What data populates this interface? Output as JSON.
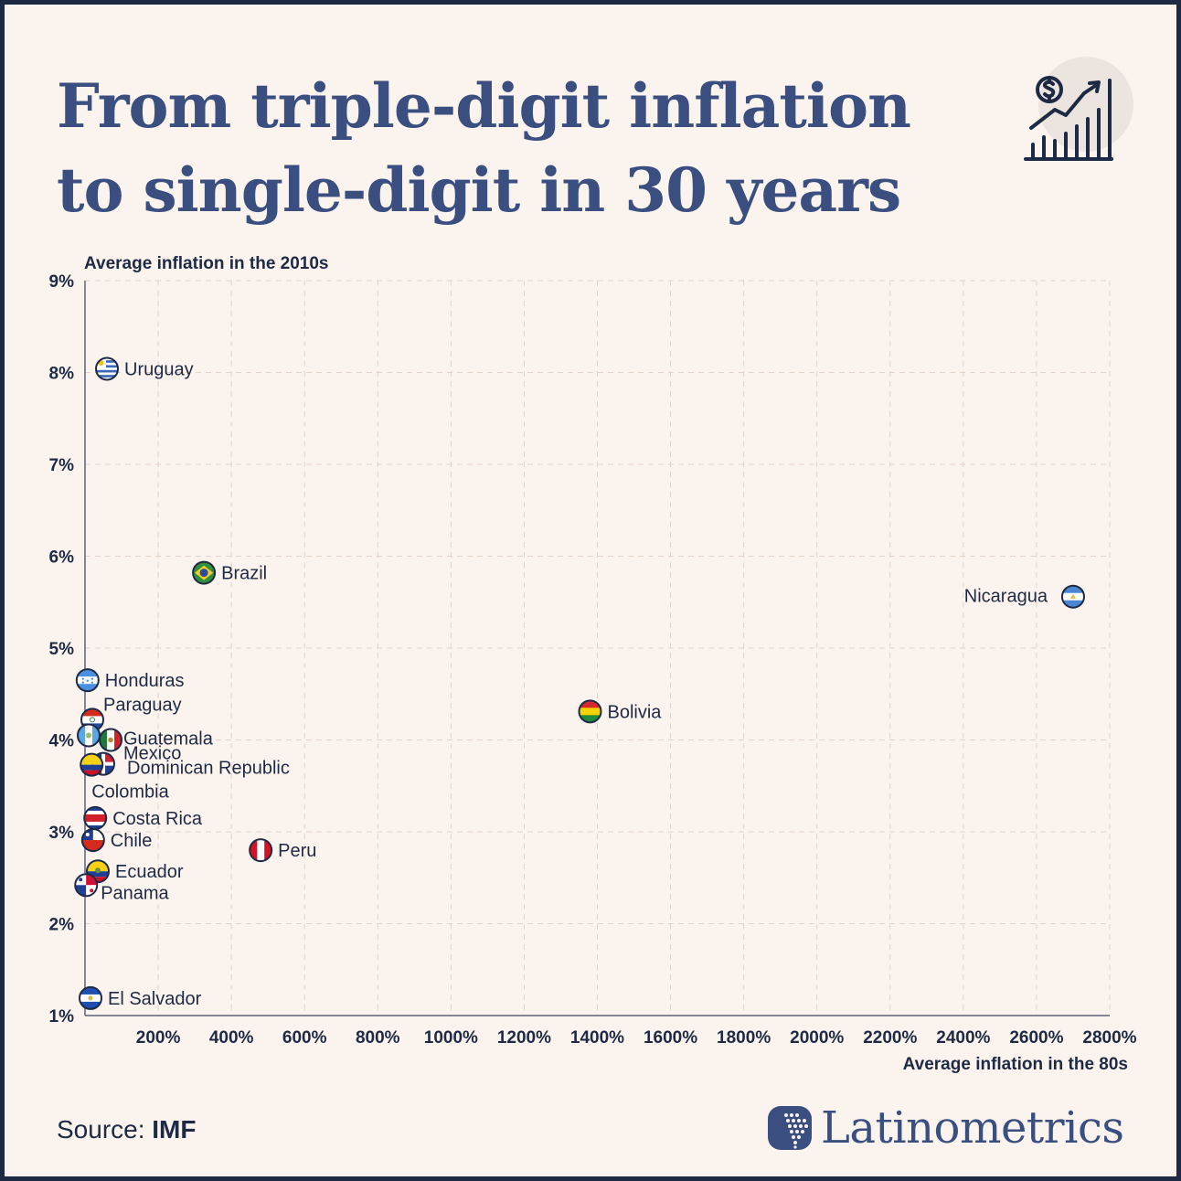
{
  "header": {
    "title_line1": "From triple-digit inflation",
    "title_line2": "to single-digit in 30 years"
  },
  "icons": {
    "header_icon": "rising-chart-dollar-icon",
    "brand_icon": "latin-america-map-icon"
  },
  "footer": {
    "source_label": "Source:",
    "source_value": "IMF",
    "brand": "Latinometrics"
  },
  "colors": {
    "background": "#fbf3ee",
    "border": "#1e2a44",
    "title": "#3a4f80",
    "text": "#1e2a44",
    "grid": "#e3d3c8"
  },
  "chart_data": {
    "type": "scatter",
    "ylabel": "Average inflation in the 2010s",
    "xlabel": "Average inflation in the 80s",
    "xlim": [
      0,
      2800
    ],
    "ylim": [
      1,
      9
    ],
    "x_ticks": [
      200,
      400,
      600,
      800,
      1000,
      1200,
      1400,
      1600,
      1800,
      2000,
      2200,
      2400,
      2600,
      2800
    ],
    "x_tick_labels": [
      "200%",
      "400%",
      "600%",
      "800%",
      "1000%",
      "1200%",
      "1400%",
      "1600%",
      "1800%",
      "2000%",
      "2200%",
      "2400%",
      "2600%",
      "2800%"
    ],
    "y_ticks": [
      1,
      2,
      3,
      4,
      5,
      6,
      7,
      8,
      9
    ],
    "y_tick_labels": [
      "1%",
      "2%",
      "3%",
      "4%",
      "5%",
      "6%",
      "7%",
      "8%",
      "9%"
    ],
    "grid": true,
    "points": [
      {
        "name": "Uruguay",
        "x": 60,
        "y": 8.04,
        "flag": "uruguay"
      },
      {
        "name": "Brazil",
        "x": 325,
        "y": 5.82,
        "flag": "brazil"
      },
      {
        "name": "Nicaragua",
        "x": 2700,
        "y": 5.56,
        "flag": "nicaragua"
      },
      {
        "name": "Honduras",
        "x": 7,
        "y": 4.65,
        "flag": "honduras"
      },
      {
        "name": "Bolivia",
        "x": 1380,
        "y": 4.31,
        "flag": "bolivia"
      },
      {
        "name": "Paraguay",
        "x": 20,
        "y": 4.22,
        "flag": "paraguay"
      },
      {
        "name": "Guatemala",
        "x": 10,
        "y": 4.05,
        "flag": "guatemala"
      },
      {
        "name": "Mexico",
        "x": 70,
        "y": 4.0,
        "flag": "mexico"
      },
      {
        "name": "Dominican Republic",
        "x": 50,
        "y": 3.74,
        "flag": "dominican-republic"
      },
      {
        "name": "Colombia",
        "x": 18,
        "y": 3.73,
        "flag": "colombia"
      },
      {
        "name": "Costa Rica",
        "x": 28,
        "y": 3.15,
        "flag": "costa-rica"
      },
      {
        "name": "Chile",
        "x": 22,
        "y": 2.91,
        "flag": "chile"
      },
      {
        "name": "Peru",
        "x": 480,
        "y": 2.8,
        "flag": "peru"
      },
      {
        "name": "Ecuador",
        "x": 35,
        "y": 2.57,
        "flag": "ecuador"
      },
      {
        "name": "Panama",
        "x": 3,
        "y": 2.42,
        "flag": "panama"
      },
      {
        "name": "El Salvador",
        "x": 15,
        "y": 1.19,
        "flag": "el-salvador"
      }
    ]
  }
}
